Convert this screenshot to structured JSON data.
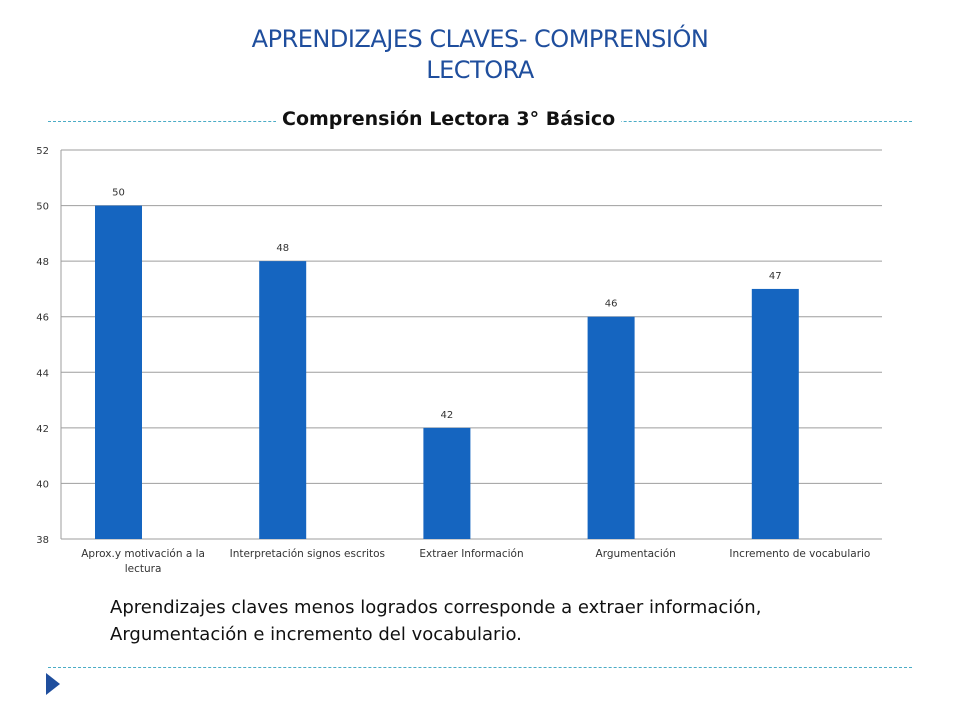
{
  "slide": {
    "title_line1": "APRENDIZAJES  CLAVES- COMPRENSIÓN",
    "title_line2": "LECTORA",
    "caption_line1": "Aprendizajes claves menos logrados corresponde a extraer información,",
    "caption_line2": "Argumentación e incremento del vocabulario."
  },
  "colors": {
    "title": "#1f4e9d",
    "bar": "#1565c0",
    "accent_rule": "#4bacc6",
    "gridline": "#9e9e9e"
  },
  "chart_data": {
    "type": "bar",
    "title": "Comprensión Lectora 3° Básico",
    "categories": [
      [
        "Aprox.y motivación a la",
        "lectura"
      ],
      [
        "Interpretación signos escritos"
      ],
      [
        "Extraer Información"
      ],
      [
        "Argumentación"
      ],
      [
        "Incremento de vocabulario"
      ]
    ],
    "values": [
      50,
      48,
      42,
      46,
      47
    ],
    "ylim": [
      38,
      52
    ],
    "yticks": [
      38,
      40,
      42,
      44,
      46,
      48,
      50,
      52
    ],
    "grid": true,
    "data_labels": true,
    "legend": "none"
  }
}
